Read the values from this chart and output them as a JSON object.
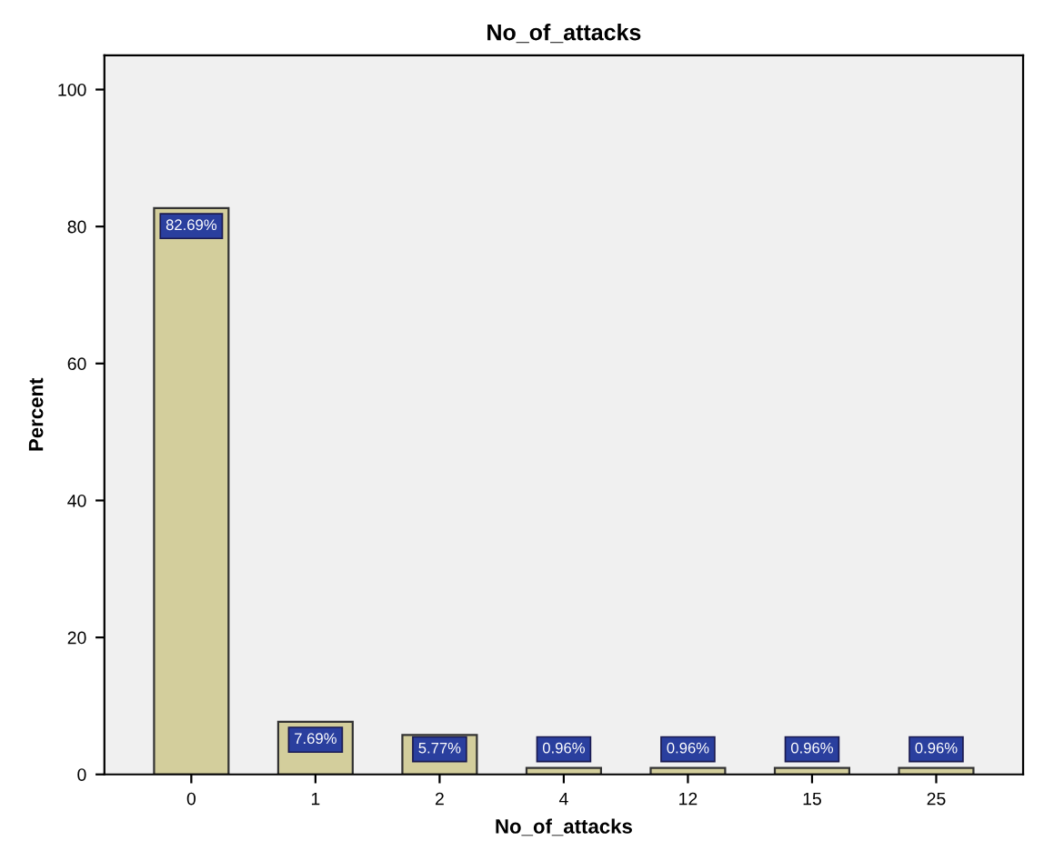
{
  "chart_data": {
    "type": "bar",
    "title": "No_of_attacks",
    "xlabel": "No_of_attacks",
    "ylabel": "Percent",
    "categories": [
      "0",
      "1",
      "2",
      "4",
      "12",
      "15",
      "25"
    ],
    "values": [
      82.69,
      7.69,
      5.77,
      0.96,
      0.96,
      0.96,
      0.96
    ],
    "value_labels": [
      "82.69%",
      "7.69%",
      "5.77%",
      "0.96%",
      "0.96%",
      "0.96%",
      "0.96%"
    ],
    "color": "#d3ce9c",
    "ylim": [
      0,
      105
    ],
    "yticks": [
      0,
      20,
      40,
      60,
      80,
      100
    ],
    "grid": false
  }
}
